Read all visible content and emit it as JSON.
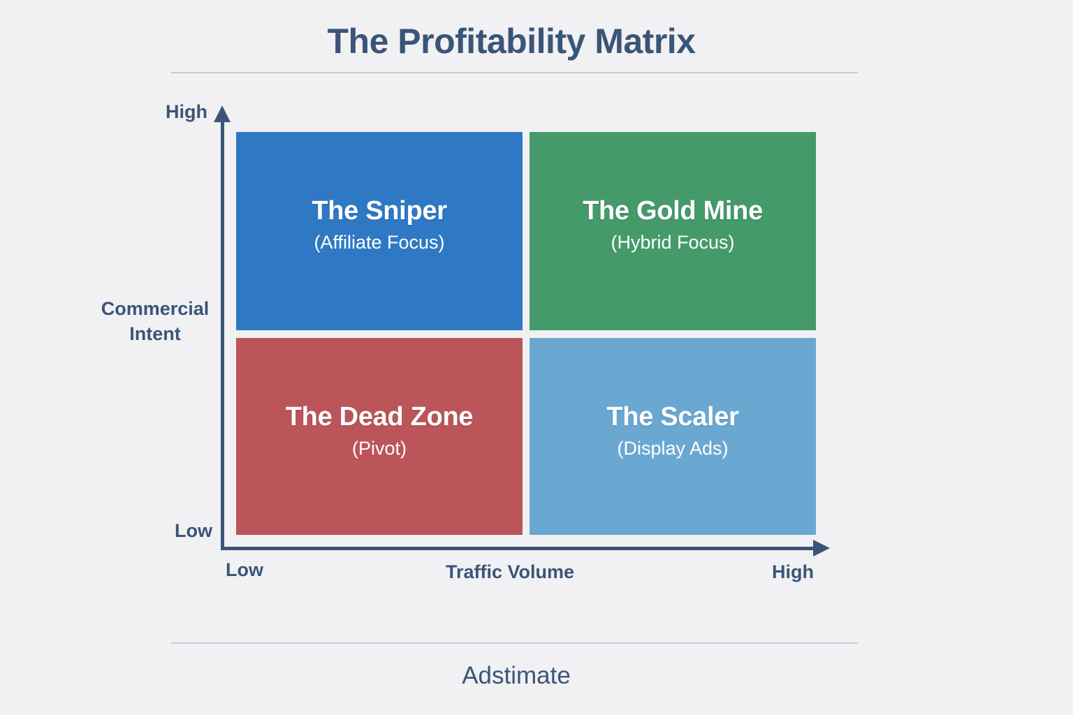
{
  "title": "The Profitability Matrix",
  "y_axis": {
    "label": "Commercial Intent",
    "label_lines": [
      "Commercial",
      "Intent"
    ],
    "high": "High",
    "low": "Low"
  },
  "x_axis": {
    "label": "Traffic Volume",
    "low": "Low",
    "high": "High"
  },
  "quadrants": [
    {
      "position": "top-left",
      "title": "The Sniper",
      "subtitle": "(Affiliate Focus)",
      "color": "#2f79c4"
    },
    {
      "position": "top-right",
      "title": "The Gold Mine",
      "subtitle": "(Hybrid Focus)",
      "color": "#459a6a"
    },
    {
      "position": "bottom-left",
      "title": "The Dead Zone",
      "subtitle": "(Pivot)",
      "color": "#bb5559"
    },
    {
      "position": "bottom-right",
      "title": "The Scaler",
      "subtitle": "(Display Ads)",
      "color": "#6aa8d2"
    }
  ],
  "footer": "Adstimate",
  "colors": {
    "background": "#f1f1f3",
    "text": "#3a5577",
    "axis": "#3a5577",
    "divider": "#c9cbd2"
  }
}
